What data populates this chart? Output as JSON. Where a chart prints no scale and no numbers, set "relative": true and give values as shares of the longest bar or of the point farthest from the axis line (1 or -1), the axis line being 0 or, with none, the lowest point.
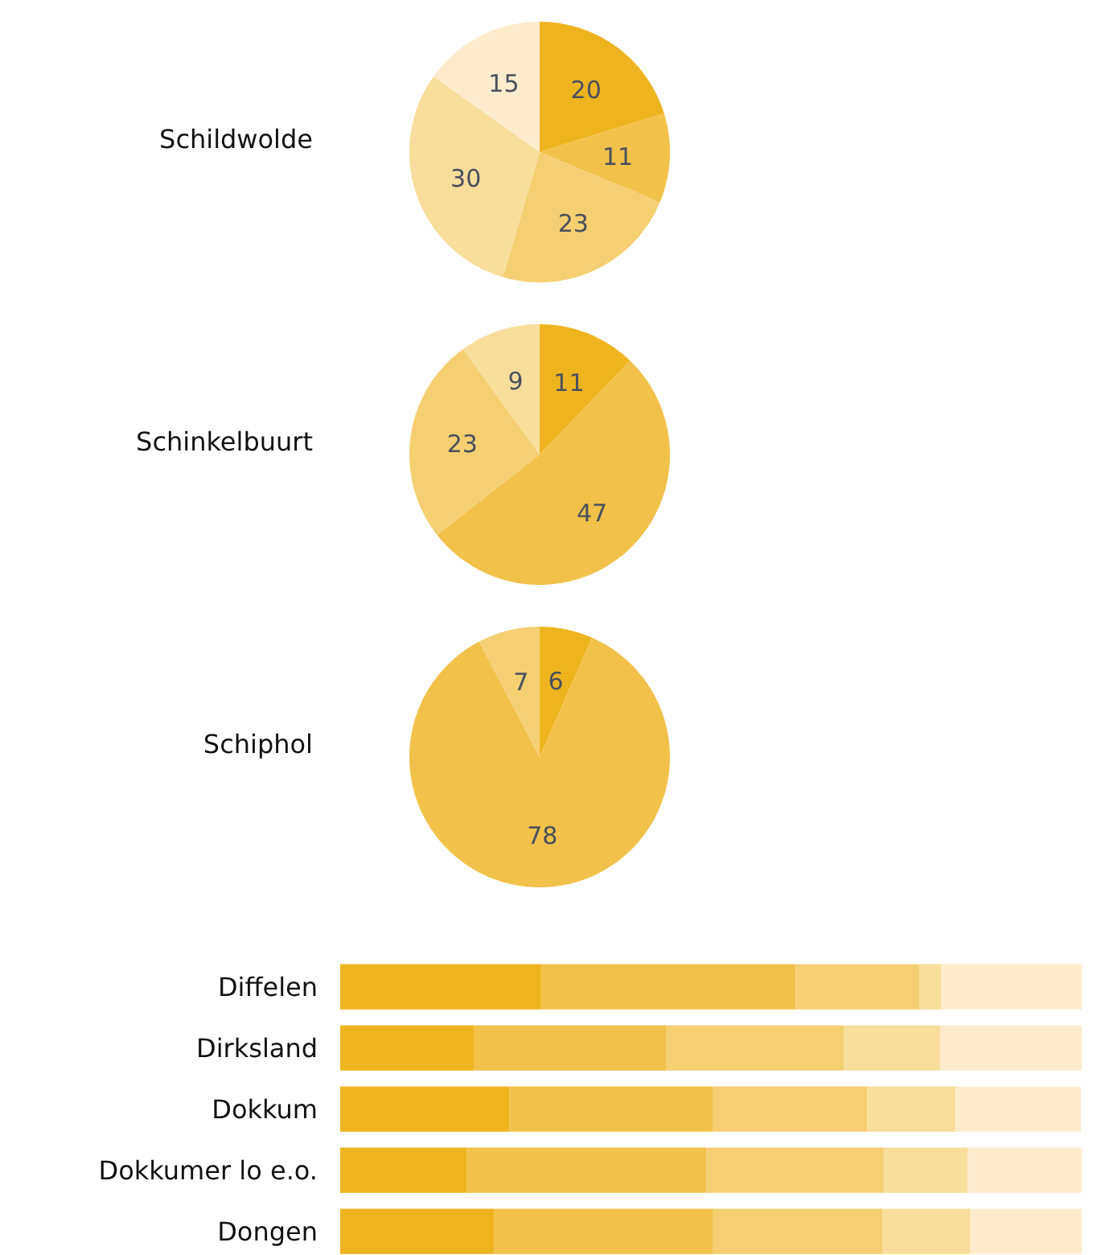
{
  "chart_data": [
    {
      "type": "pie",
      "title": "Schildwolde",
      "categories": [
        null,
        null,
        null,
        null,
        null
      ],
      "values": [
        20,
        11,
        23,
        30,
        15
      ],
      "colors": [
        "#eeb420",
        "#f2c14a",
        "#f5cf72",
        "#f9dd9b",
        "#fdeccc"
      ],
      "data_labels": true
    },
    {
      "type": "pie",
      "title": "Schinkelbuurt",
      "categories": [
        null,
        null,
        null,
        null
      ],
      "values": [
        11,
        47,
        23,
        9
      ],
      "colors": [
        "#eeb420",
        "#f2c14a",
        "#f5cf72",
        "#f9dd9b"
      ],
      "data_labels": true
    },
    {
      "type": "pie",
      "title": "Schiphol",
      "categories": [
        null,
        null,
        null
      ],
      "values": [
        6,
        78,
        7
      ],
      "colors": [
        "#eeb420",
        "#f2c14a",
        "#f5cf72"
      ],
      "data_labels": true
    },
    {
      "type": "bar",
      "orientation": "horizontal",
      "stacked": true,
      "relative": true,
      "categories": [
        "Diffelen",
        "Dirksland",
        "Dokkum",
        "Dokkumer lo e.o.",
        "Dongen"
      ],
      "series": [
        {
          "color": "#eeb420",
          "values": [
            0.271,
            0.18,
            0.228,
            0.171,
            0.208
          ]
        },
        {
          "color": "#f2c14a",
          "values": [
            0.343,
            0.26,
            0.275,
            0.323,
            0.295
          ]
        },
        {
          "color": "#f5cf72",
          "values": [
            0.167,
            0.239,
            0.208,
            0.239,
            0.228
          ]
        },
        {
          "color": "#f9dd9b",
          "values": [
            0.03,
            0.13,
            0.119,
            0.113,
            0.119
          ]
        },
        {
          "color": "#fdeccc",
          "values": [
            0.189,
            0.191,
            0.169,
            0.154,
            0.15
          ]
        }
      ]
    }
  ]
}
